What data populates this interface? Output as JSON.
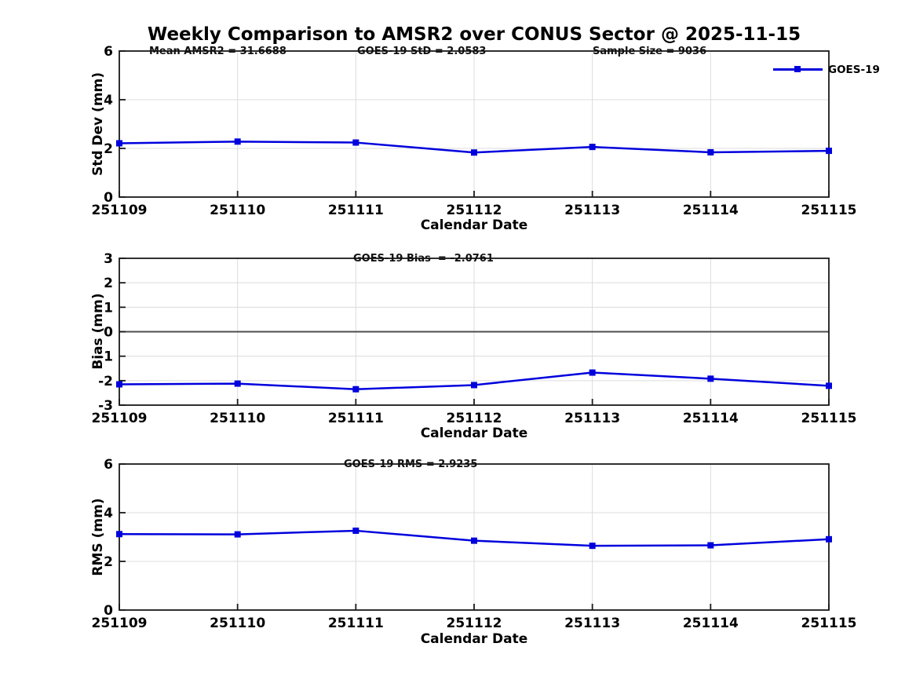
{
  "figure": {
    "title": "Weekly Comparison to AMSR2 over CONUS Sector @ 2025-11-15",
    "background": "#ffffff"
  },
  "legend": {
    "label": "GOES-19",
    "position": "northeast-outside"
  },
  "colors": {
    "series": "#0000dd",
    "grid": "#dcdcdc",
    "axis": "#1a1a1a",
    "zero_line": "#4d4d4d",
    "text": "#000000"
  },
  "xlabel": "Calendar Date",
  "categories": [
    "251109",
    "251110",
    "251111",
    "251112",
    "251113",
    "251114",
    "251115"
  ],
  "chart_data": [
    {
      "type": "line",
      "ylabel": "Std Dev (mm)",
      "ylim": [
        0,
        6
      ],
      "yticks": [
        0,
        2,
        4,
        6
      ],
      "grid": true,
      "zero_line": false,
      "series": [
        {
          "name": "GOES-19",
          "values": [
            2.21,
            2.28,
            2.24,
            1.83,
            2.06,
            1.84,
            1.9
          ]
        }
      ],
      "annotations": [
        "Mean AMSR2 = 31.6688",
        "GOES-19 StD = 2.0583",
        "Sample Size = 9036"
      ]
    },
    {
      "type": "line",
      "ylabel": "Bias (mm)",
      "ylim": [
        -3,
        3
      ],
      "yticks": [
        -3,
        -2,
        -1,
        0,
        1,
        2,
        3
      ],
      "grid": true,
      "zero_line": true,
      "series": [
        {
          "name": "GOES-19",
          "values": [
            -2.15,
            -2.12,
            -2.35,
            -2.18,
            -1.67,
            -1.92,
            -2.21
          ]
        }
      ],
      "annotations": [
        "GOES-19 Bias  = -2.0761"
      ]
    },
    {
      "type": "line",
      "ylabel": "RMS (mm)",
      "ylim": [
        0,
        6
      ],
      "yticks": [
        0,
        2,
        4,
        6
      ],
      "grid": true,
      "zero_line": false,
      "series": [
        {
          "name": "GOES-19",
          "values": [
            3.12,
            3.11,
            3.26,
            2.85,
            2.64,
            2.66,
            2.91
          ]
        }
      ],
      "annotations": [
        "GOES-19 RMS = 2.9235"
      ]
    }
  ]
}
